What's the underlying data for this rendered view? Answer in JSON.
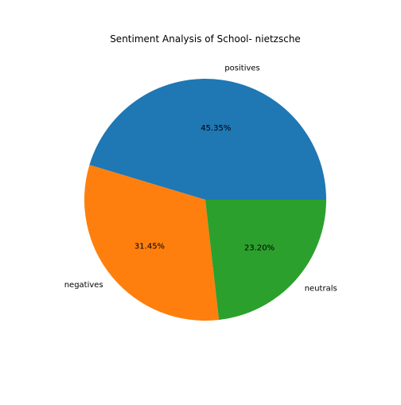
{
  "chart_data": {
    "type": "pie",
    "title": "Sentiment Analysis of School- nietzsche",
    "slices": [
      {
        "label": "positives",
        "value": 45.35,
        "display": "45.35%",
        "color": "#1f77b4"
      },
      {
        "label": "negatives",
        "value": 31.45,
        "display": "31.45%",
        "color": "#ff7f0e"
      },
      {
        "label": "neutrals",
        "value": 23.2,
        "display": "23.20%",
        "color": "#2ca02c"
      }
    ],
    "start_angle_deg": 0,
    "direction": "counterclockwise"
  }
}
